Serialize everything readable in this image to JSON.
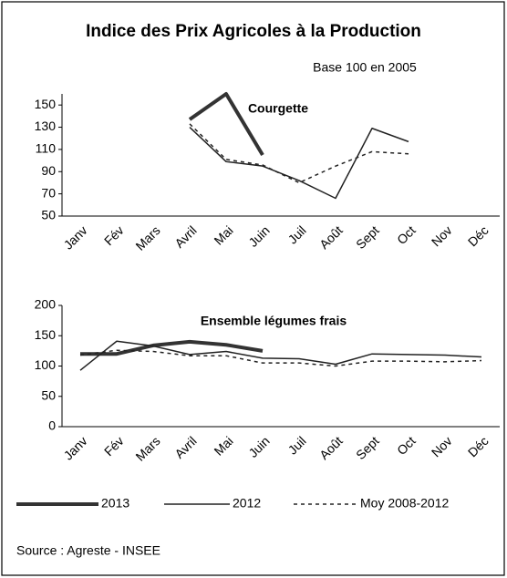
{
  "title": "Indice des Prix Agricoles à la Production",
  "subtitle": "Base 100 en 2005",
  "source": "Source : Agreste - INSEE",
  "chart_data": [
    {
      "type": "line",
      "title": "Courgette",
      "categories": [
        "Janv",
        "Fév",
        "Mars",
        "Avril",
        "Mai",
        "Juin",
        "Juil",
        "Août",
        "Sept",
        "Oct",
        "Nov",
        "Déc"
      ],
      "ylim": [
        50,
        160
      ],
      "yticks": [
        50,
        70,
        90,
        110,
        130,
        150
      ],
      "series": [
        {
          "name": "2013",
          "color": "#333333",
          "style": "thick",
          "values": [
            null,
            null,
            null,
            137,
            160,
            105,
            null,
            null,
            null,
            null,
            null,
            null
          ]
        },
        {
          "name": "2012",
          "color": "#222222",
          "style": "thin",
          "values": [
            null,
            null,
            null,
            130,
            99,
            95,
            82,
            66,
            129,
            117,
            null,
            null
          ]
        },
        {
          "name": "Moy 2008-2012",
          "color": "#222222",
          "style": "dashed",
          "values": [
            null,
            null,
            null,
            133,
            101,
            96,
            80,
            95,
            108,
            106,
            null,
            null
          ]
        }
      ]
    },
    {
      "type": "line",
      "title": "Ensemble légumes frais",
      "categories": [
        "Janv",
        "Fév",
        "Mars",
        "Avril",
        "Mai",
        "Juin",
        "Juil",
        "Août",
        "Sept",
        "Oct",
        "Nov",
        "Déc"
      ],
      "ylim": [
        0,
        200
      ],
      "yticks": [
        0,
        50,
        100,
        150,
        200
      ],
      "series": [
        {
          "color": "#333333",
          "style": "thick",
          "values": [
            120,
            120,
            134,
            140,
            135,
            125,
            null,
            null,
            null,
            null,
            null,
            null
          ]
        },
        {
          "color": "#222222",
          "style": "thin",
          "values": [
            93,
            141,
            133,
            119,
            124,
            113,
            112,
            103,
            120,
            119,
            118,
            115
          ]
        },
        {
          "color": "#222222",
          "style": "dashed",
          "values": [
            118,
            126,
            124,
            117,
            117,
            105,
            105,
            100,
            108,
            108,
            107,
            109
          ]
        }
      ]
    }
  ]
}
